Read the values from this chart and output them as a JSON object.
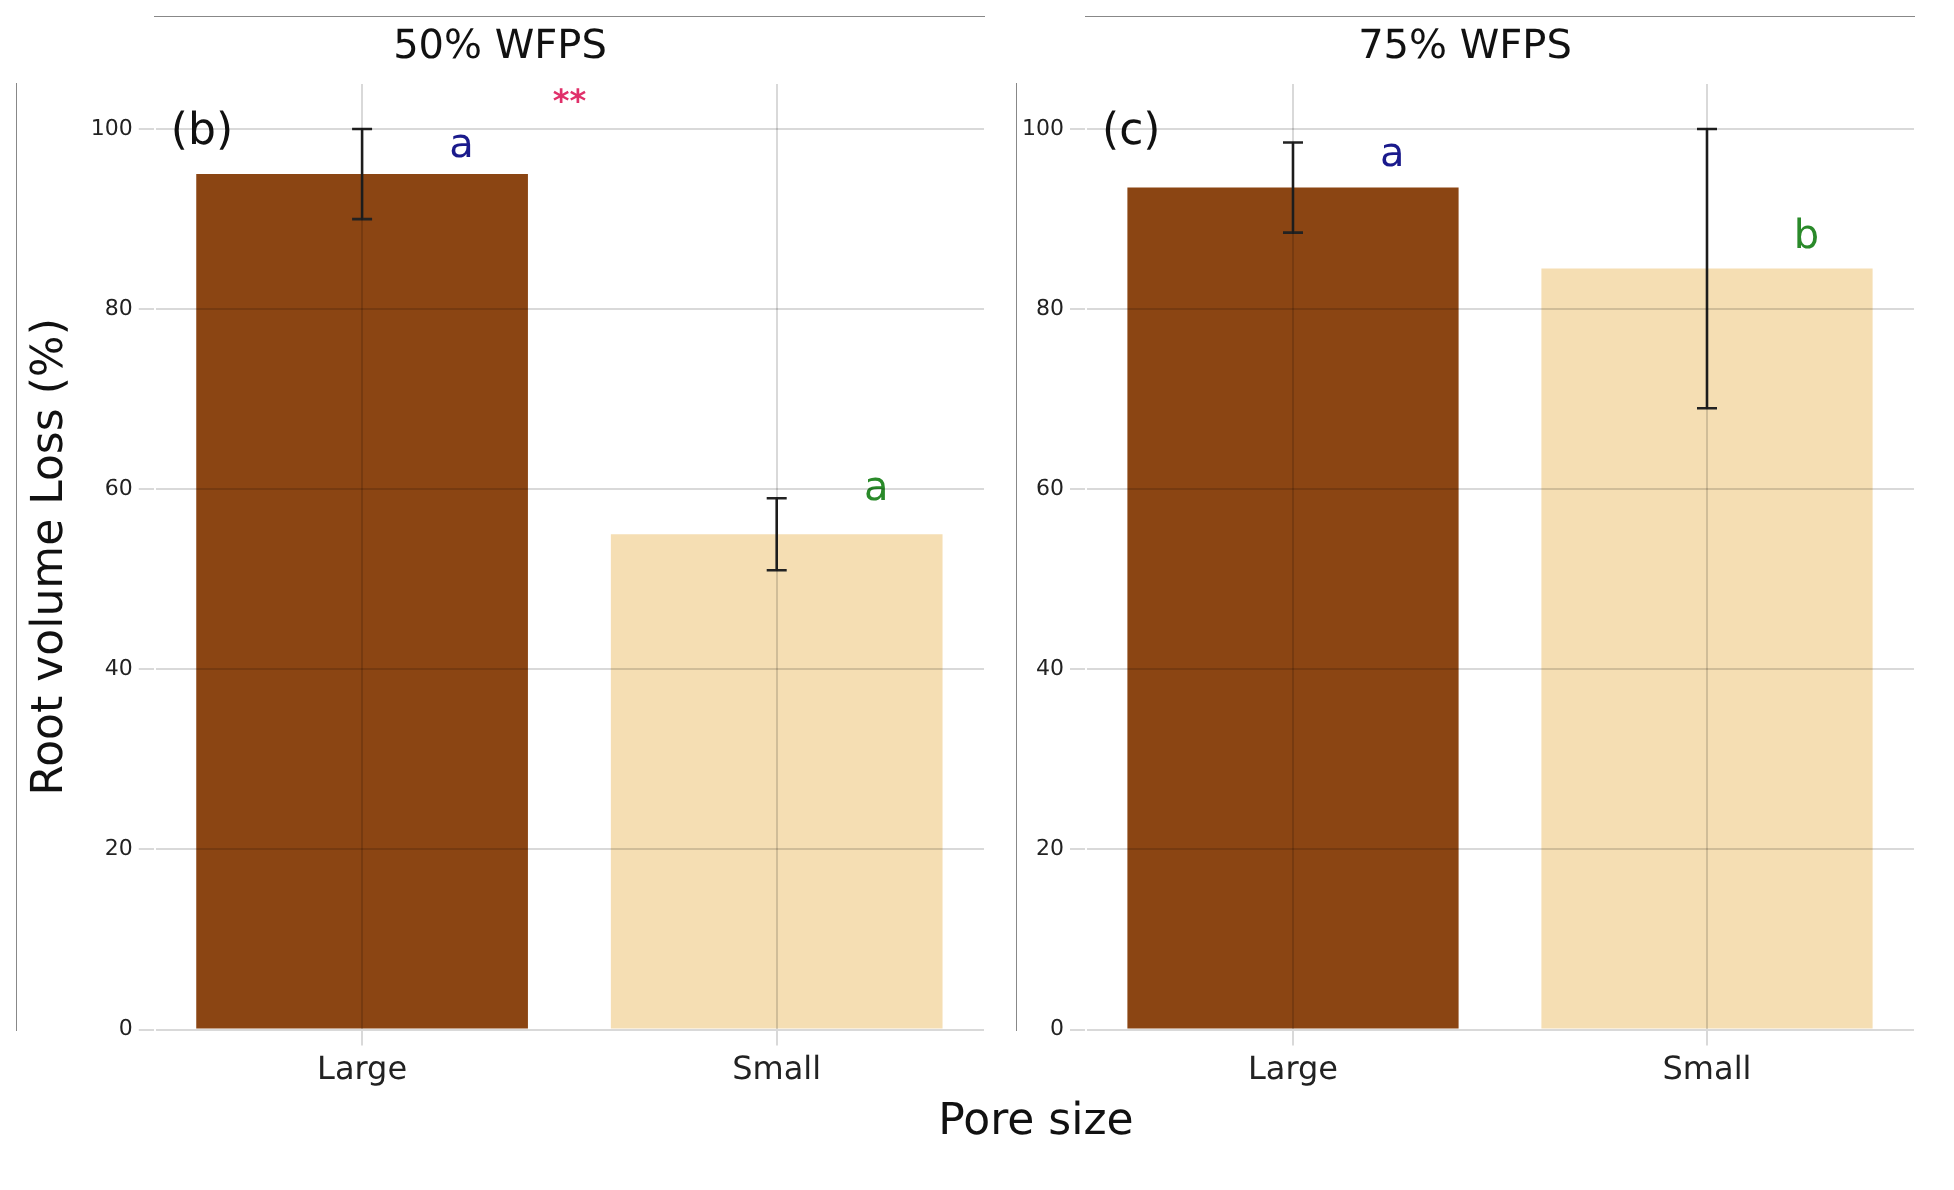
{
  "chart_data": [
    {
      "type": "bar",
      "title": "50% WFPS",
      "xlabel": "Pore size",
      "ylabel": "Root volume Loss (%)",
      "categories": [
        "Large",
        "Small"
      ],
      "colors": [
        "#8b4513",
        "#f5deb3"
      ],
      "values": [
        95,
        55
      ],
      "errors": [
        5,
        4
      ],
      "ylim": [
        0,
        105
      ],
      "yticks": [
        0,
        20,
        40,
        60,
        80,
        100
      ],
      "grid": true,
      "legend": false,
      "annotations": [
        "(b)",
        "**",
        {
          "text": "a",
          "x": "Large",
          "y": 98
        },
        {
          "text": "a",
          "x": "Small",
          "y": 60
        }
      ]
    },
    {
      "type": "bar",
      "title": "75% WFPS",
      "categories": [
        "Large",
        "Small"
      ],
      "colors": [
        "#8b4513",
        "#f5deb3"
      ],
      "values": [
        93.5,
        84.5
      ],
      "errors": [
        5,
        15.5
      ],
      "ylim": [
        0,
        105
      ],
      "yticks": [
        0,
        20,
        40,
        60,
        80,
        100
      ],
      "grid": true,
      "legend": false,
      "annotations": [
        "(c)",
        {
          "text": "a",
          "x": "Large",
          "y": 97
        },
        {
          "text": "b",
          "x": "Small",
          "y": 88
        }
      ]
    }
  ]
}
